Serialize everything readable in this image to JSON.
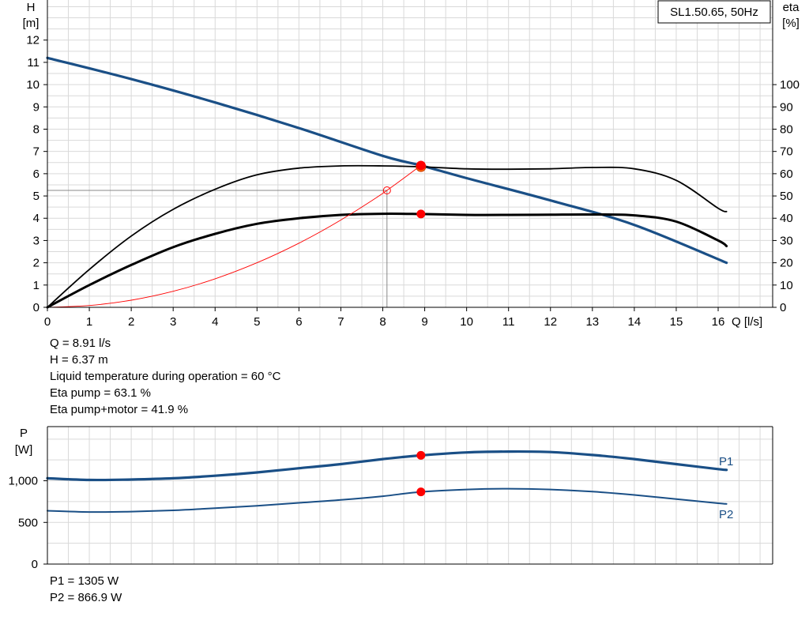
{
  "chart_data": [
    {
      "type": "line",
      "title": "SL1.50.65, 50Hz",
      "xlabel": "Q [l/s]",
      "ylabel": "H\n[m]",
      "ylabel_right": "eta\n[%]",
      "xlim": [
        0,
        17.3
      ],
      "ylim": [
        0,
        13.8
      ],
      "ylim_right": [
        0,
        138
      ],
      "x_ticks": [
        0,
        1,
        2,
        3,
        4,
        5,
        6,
        7,
        8,
        9,
        10,
        11,
        12,
        13,
        14,
        15,
        16
      ],
      "y_ticks": [
        0,
        1,
        2,
        3,
        4,
        5,
        6,
        7,
        8,
        9,
        10,
        11,
        12
      ],
      "y_ticks_right": [
        0,
        10,
        20,
        30,
        40,
        50,
        60,
        70,
        80,
        90,
        100
      ],
      "grid": true,
      "series": [
        {
          "role": "head-curve",
          "axis": "left",
          "color": "#1a4f86",
          "x": [
            0,
            2,
            4,
            6,
            8,
            8.91,
            10,
            12,
            14,
            16.2
          ],
          "y": [
            11.2,
            10.25,
            9.2,
            8.05,
            6.8,
            6.37,
            5.8,
            4.8,
            3.7,
            2.0
          ]
        },
        {
          "role": "eta-pump-curve",
          "axis": "right",
          "color": "#000000",
          "x": [
            0,
            1,
            2,
            3,
            4,
            5,
            6,
            7,
            8,
            8.91,
            10,
            11,
            12,
            13,
            14,
            15,
            16,
            16.2
          ],
          "y": [
            0,
            17,
            32,
            44,
            53,
            59.5,
            62.5,
            63.5,
            63.5,
            63.1,
            62.2,
            62,
            62.2,
            62.8,
            62.2,
            57,
            44.5,
            43
          ]
        },
        {
          "role": "eta-pump-motor-curve",
          "axis": "right",
          "color": "#000000",
          "x": [
            0,
            1,
            2,
            3,
            4,
            5,
            6,
            7,
            8,
            8.91,
            10,
            11,
            12,
            13,
            14,
            15,
            16,
            16.2
          ],
          "y": [
            0,
            10,
            19,
            27,
            33,
            37.5,
            40,
            41.5,
            42,
            41.9,
            41.5,
            41.5,
            41.6,
            41.7,
            41.3,
            38.5,
            30,
            27.5
          ]
        },
        {
          "role": "system-curve",
          "axis": "left",
          "color": "#ff0000",
          "x": [
            0,
            1,
            2,
            3,
            4,
            5,
            6,
            7,
            8,
            8.91
          ],
          "y": [
            0,
            0.08,
            0.32,
            0.72,
            1.28,
            2.0,
            2.88,
            3.92,
            5.12,
            6.37
          ]
        }
      ],
      "duty_point": {
        "q": 8.91,
        "h": 6.37,
        "eta_pump": 63.1,
        "eta_pump_motor": 41.9
      },
      "reference_point": {
        "q": 8.1,
        "h": 5.25
      }
    },
    {
      "type": "line",
      "ylabel": "P\n[W]",
      "xlim": [
        0,
        17.3
      ],
      "ylim": [
        0,
        1650
      ],
      "y_ticks": [
        0,
        500,
        1000
      ],
      "y_tick_labels": [
        "0",
        "500",
        "1,000"
      ],
      "grid": true,
      "series": [
        {
          "name": "P1",
          "color": "#1a4f86",
          "x": [
            0,
            1,
            2,
            3,
            4,
            5,
            6,
            7,
            8,
            8.91,
            10,
            11,
            12,
            13,
            14,
            15,
            16,
            16.2
          ],
          "y": [
            1030,
            1010,
            1015,
            1030,
            1060,
            1100,
            1150,
            1200,
            1260,
            1305,
            1340,
            1350,
            1345,
            1310,
            1260,
            1200,
            1140,
            1130
          ]
        },
        {
          "name": "P2",
          "color": "#1a4f86",
          "x": [
            0,
            1,
            2,
            3,
            4,
            5,
            6,
            7,
            8,
            8.91,
            10,
            11,
            12,
            13,
            14,
            15,
            16,
            16.2
          ],
          "y": [
            640,
            625,
            630,
            645,
            670,
            700,
            735,
            770,
            815,
            866.9,
            895,
            905,
            895,
            870,
            830,
            780,
            730,
            722
          ]
        }
      ],
      "duty_point": {
        "q": 8.91,
        "p1": 1305,
        "p2": 866.9
      }
    }
  ],
  "main_info": {
    "q": "Q = 8.91 l/s",
    "h": "H = 6.37 m",
    "temp": "Liquid temperature during operation = 60 °C",
    "eta_pump": "Eta pump = 63.1 %",
    "eta_pump_motor": "Eta pump+motor = 41.9 %"
  },
  "power_info": {
    "p1": "P1 = 1305 W",
    "p2": "P2 = 866.9 W"
  }
}
